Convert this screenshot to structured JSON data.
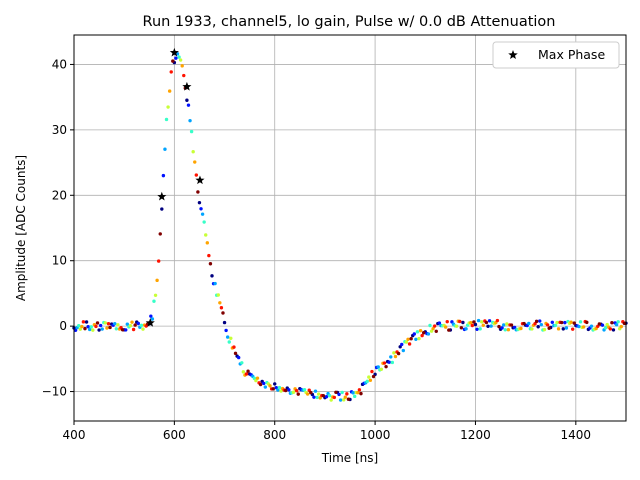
{
  "chart_data": {
    "type": "scatter",
    "title": "Run 1933, channel5, lo gain, Pulse w/ 0.0 dB Attenuation",
    "xlabel": "Time [ns]",
    "ylabel": "Amplitude [ADC Counts]",
    "xlim": [
      400,
      1500
    ],
    "ylim": [
      -14.5,
      44.5
    ],
    "xticks": [
      400,
      600,
      800,
      1000,
      1200,
      1400
    ],
    "yticks": [
      -10,
      0,
      10,
      20,
      30,
      40
    ],
    "grid": true,
    "legend_position": "top-right",
    "colormap": "jet",
    "waveform_points": [
      [
        400,
        0
      ],
      [
        500,
        0
      ],
      [
        540,
        0.2
      ],
      [
        555,
        1
      ],
      [
        565,
        6
      ],
      [
        575,
        18
      ],
      [
        585,
        32
      ],
      [
        595,
        40
      ],
      [
        605,
        41.5
      ],
      [
        615,
        40
      ],
      [
        625,
        35
      ],
      [
        635,
        29
      ],
      [
        645,
        22
      ],
      [
        655,
        17
      ],
      [
        665,
        13
      ],
      [
        675,
        8
      ],
      [
        685,
        5
      ],
      [
        695,
        2
      ],
      [
        705,
        -1
      ],
      [
        720,
        -4
      ],
      [
        740,
        -6.8
      ],
      [
        760,
        -8.3
      ],
      [
        780,
        -9
      ],
      [
        800,
        -9.5
      ],
      [
        850,
        -10
      ],
      [
        900,
        -10.6
      ],
      [
        950,
        -10.6
      ],
      [
        970,
        -10
      ],
      [
        985,
        -8.5
      ],
      [
        1000,
        -7
      ],
      [
        1020,
        -5.8
      ],
      [
        1040,
        -4.5
      ],
      [
        1060,
        -2.8
      ],
      [
        1080,
        -1.6
      ],
      [
        1100,
        -0.8
      ],
      [
        1120,
        -0.2
      ],
      [
        1150,
        0.1
      ],
      [
        1200,
        0.2
      ],
      [
        1300,
        0.1
      ],
      [
        1400,
        0.05
      ],
      [
        1500,
        0
      ]
    ],
    "series": [
      {
        "name": "Max Phase",
        "marker": "star",
        "color": "#000000",
        "x": [
          552,
          575,
          600,
          625,
          651
        ],
        "y": [
          0.5,
          19.8,
          41.8,
          36.6,
          22.3
        ]
      }
    ]
  }
}
